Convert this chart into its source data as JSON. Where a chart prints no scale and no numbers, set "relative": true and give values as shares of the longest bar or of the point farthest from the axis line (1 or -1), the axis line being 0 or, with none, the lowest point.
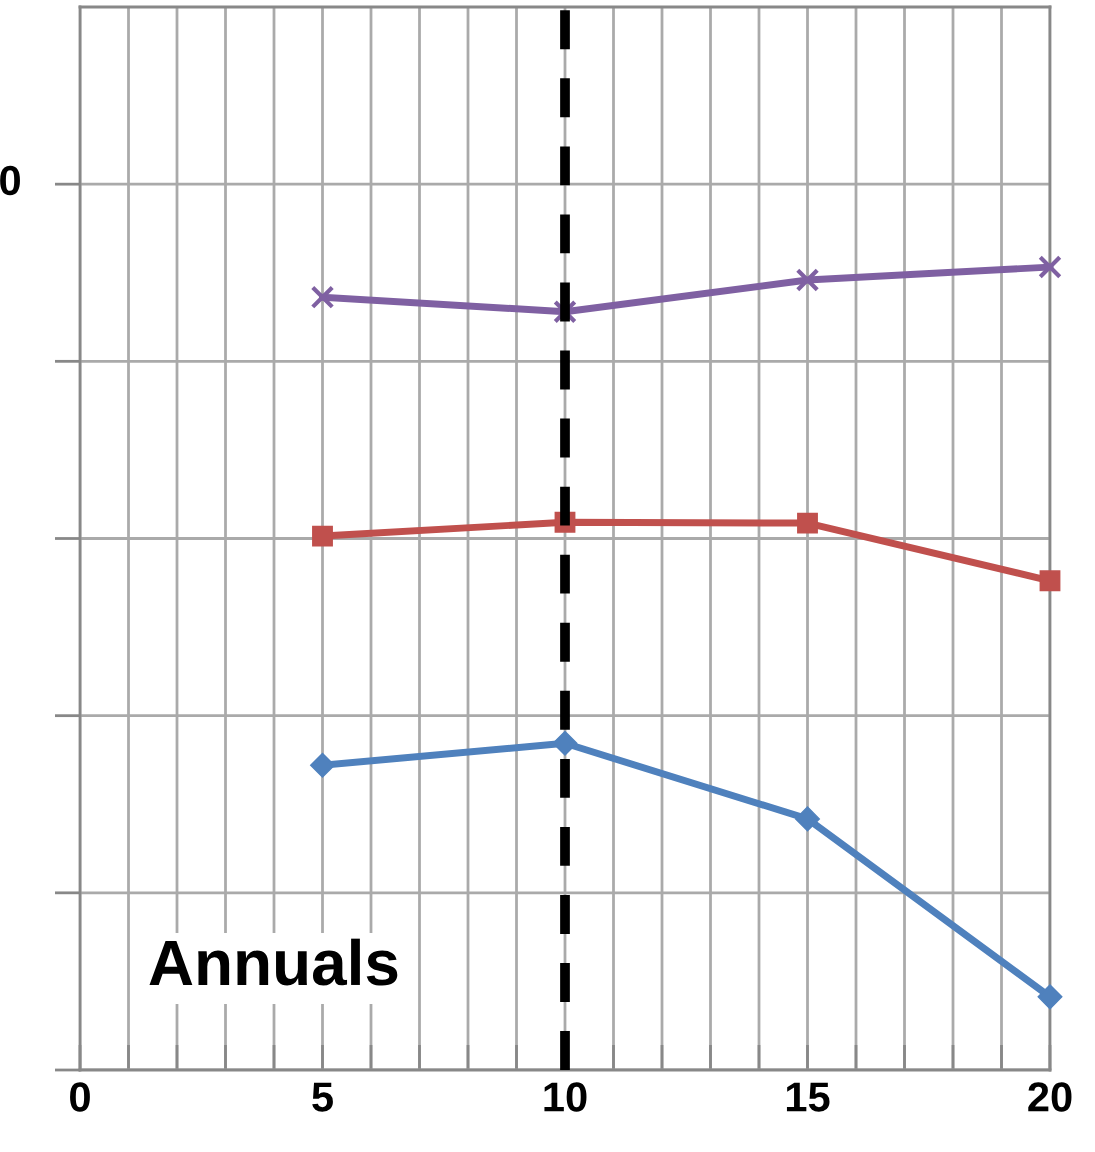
{
  "chart_data": {
    "type": "line",
    "relative": true,
    "x": [
      5,
      10,
      15,
      20
    ],
    "series": [
      {
        "color": "#7f60a2",
        "marker": "cross",
        "values": [
          -0.139,
          -0.157,
          -0.118,
          -0.102
        ]
      },
      {
        "color": "#c0504d",
        "marker": "square",
        "values": [
          -0.433,
          -0.416,
          -0.417,
          -0.488
        ]
      },
      {
        "color": "#4f81bd",
        "marker": "diamond",
        "values": [
          -0.715,
          -0.688,
          -0.781,
          -1
        ]
      }
    ],
    "xlim": [
      0,
      20
    ],
    "xticks": [
      0,
      {
        "value": 1,
        "label": null
      },
      {
        "value": 2,
        "label": null
      },
      {
        "value": 3,
        "label": null
      },
      {
        "value": 4,
        "label": null
      },
      5,
      {
        "value": 6,
        "label": null
      },
      {
        "value": 7,
        "label": null
      },
      {
        "value": 8,
        "label": null
      },
      {
        "value": 9,
        "label": null
      },
      10,
      {
        "value": 11,
        "label": null
      },
      {
        "value": 12,
        "label": null
      },
      {
        "value": 13,
        "label": null
      },
      {
        "value": 14,
        "label": null
      },
      15,
      {
        "value": 16,
        "label": null
      },
      {
        "value": 17,
        "label": null
      },
      {
        "value": 18,
        "label": null
      },
      {
        "value": 19,
        "label": null
      },
      20
    ],
    "grid": true,
    "legend": false,
    "ref_lines": [
      {
        "axis": "x",
        "value": 10,
        "color": "#000000",
        "line_style": "dashed"
      }
    ],
    "annotations": [
      "0",
      "Annuals"
    ]
  }
}
